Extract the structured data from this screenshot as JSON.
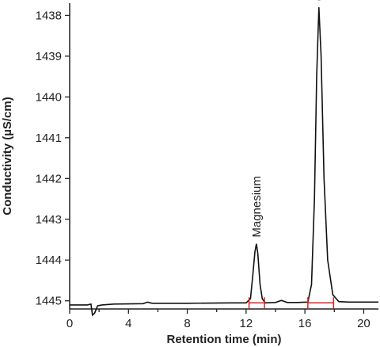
{
  "chart_data": {
    "type": "line",
    "xlabel": "Retention time (min)",
    "ylabel": "Conductivity (µS/cm)",
    "xlim": [
      0,
      21
    ],
    "ylim": [
      1445.2,
      1437.7
    ],
    "x_ticks": [
      "0",
      "4",
      "8",
      "12",
      "16",
      "20"
    ],
    "y_ticks": [
      "1438",
      "1439",
      "1440",
      "1441",
      "1442",
      "1443",
      "1444",
      "1445"
    ],
    "series": [
      {
        "x": [
          0,
          1.2,
          1.45,
          1.55,
          1.7,
          1.9,
          2.2,
          3.0,
          5.0,
          5.3,
          5.6,
          8.0,
          11.0,
          12.0,
          12.3,
          12.45,
          12.6,
          12.7,
          12.8,
          12.95,
          13.1,
          13.3,
          14.0,
          14.4,
          14.8,
          15.5,
          16.2,
          16.45,
          16.65,
          16.8,
          16.95,
          17.1,
          17.3,
          17.55,
          17.9,
          18.3,
          19.0,
          21.0
        ],
        "y": [
          1445.1,
          1445.1,
          1445.08,
          1445.35,
          1445.3,
          1445.12,
          1445.1,
          1445.08,
          1445.07,
          1445.03,
          1445.06,
          1445.06,
          1445.05,
          1445.05,
          1444.95,
          1444.4,
          1443.8,
          1443.6,
          1443.85,
          1444.6,
          1444.95,
          1445.05,
          1445.04,
          1444.99,
          1445.04,
          1445.04,
          1445.03,
          1444.6,
          1442.5,
          1439.5,
          1437.8,
          1439.0,
          1442.0,
          1444.0,
          1444.85,
          1445.02,
          1445.03,
          1445.03
        ]
      }
    ],
    "peaks": [
      {
        "label": "Magnesium",
        "apex_x": 12.7,
        "apex_y": 1443.6,
        "start_x": 12.2,
        "end_x": 13.25
      },
      {
        "label": "Calcium",
        "apex_x": 16.95,
        "apex_y": 1437.8,
        "start_x": 16.2,
        "end_x": 17.95
      }
    ],
    "colors": {
      "trace": "#111111",
      "baseline": "#e02020",
      "axis": "#222222"
    },
    "grid": false
  }
}
